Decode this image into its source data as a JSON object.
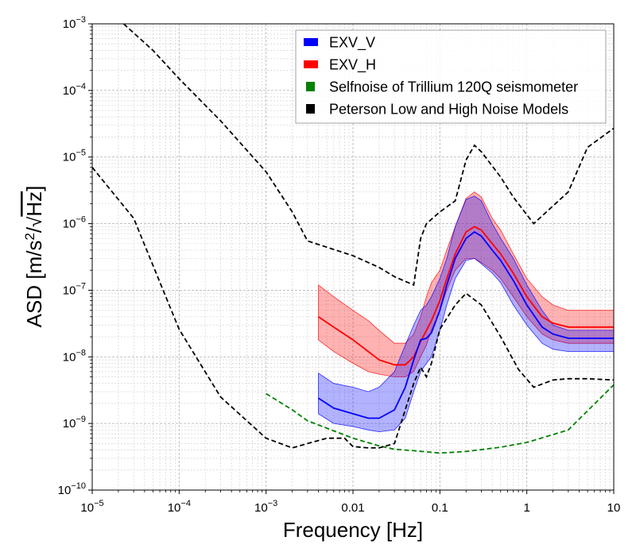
{
  "chart_data": {
    "type": "line",
    "xlabel": "Frequency [Hz]",
    "ylabel": "ASD [m/s²/√Hz]",
    "ylabel_parts": {
      "prefix": "ASD [m/s",
      "exp": "2",
      "slash": "/",
      "radicand": "Hz",
      "suffix": "]"
    },
    "xscale": "log",
    "yscale": "log",
    "xlim": [
      1e-05,
      10
    ],
    "ylim": [
      1e-10,
      0.001
    ],
    "grid": true,
    "legend_position": "top-right",
    "x_ticks": [
      {
        "value": 1e-05,
        "base": "10",
        "exp": "−5"
      },
      {
        "value": 0.0001,
        "base": "10",
        "exp": "−4"
      },
      {
        "value": 0.001,
        "base": "10",
        "exp": "−3"
      },
      {
        "value": 0.01,
        "label": "0.01"
      },
      {
        "value": 0.1,
        "label": "0.1"
      },
      {
        "value": 1,
        "label": "1"
      },
      {
        "value": 10,
        "label": "10"
      }
    ],
    "y_ticks": [
      {
        "value": 1e-10,
        "base": "10",
        "exp": "−10"
      },
      {
        "value": 1e-09,
        "base": "10",
        "exp": "−9"
      },
      {
        "value": 1e-08,
        "base": "10",
        "exp": "−8"
      },
      {
        "value": 1e-07,
        "base": "10",
        "exp": "−7"
      },
      {
        "value": 1e-06,
        "base": "10",
        "exp": "−6"
      },
      {
        "value": 1e-05,
        "base": "10",
        "exp": "−5"
      },
      {
        "value": 0.0001,
        "base": "10",
        "exp": "−4"
      },
      {
        "value": 0.001,
        "base": "10",
        "exp": "−3"
      }
    ],
    "legend": [
      {
        "label": "EXV_V",
        "color": "#0000ff"
      },
      {
        "label": "EXV_H",
        "color": "#ff0000"
      },
      {
        "label": "Selfnoise of Trillium 120Q seismometer",
        "color": "#008000"
      },
      {
        "label": "Peterson Low and High Noise Models",
        "color": "#000000"
      }
    ],
    "bands": [
      {
        "series": "EXV_H",
        "fill": "#ff0000",
        "fill_opacity": 0.3,
        "edge_color": "#ff0000",
        "x": [
          0.004,
          0.006,
          0.01,
          0.015,
          0.02,
          0.03,
          0.04,
          0.05,
          0.06,
          0.07,
          0.08,
          0.1,
          0.12,
          0.15,
          0.2,
          0.25,
          0.3,
          0.4,
          0.5,
          0.7,
          1,
          1.5,
          2,
          3,
          5,
          7,
          10
        ],
        "upper": [
          1.2e-07,
          8e-08,
          5e-08,
          3.5e-08,
          2.5e-08,
          1.6e-08,
          1.6e-08,
          2.2e-08,
          4e-08,
          8e-08,
          1.3e-07,
          2e-07,
          4e-07,
          9e-07,
          2.4e-06,
          3e-06,
          2.5e-06,
          1.2e-06,
          8e-07,
          3.5e-07,
          1.5e-07,
          8e-08,
          6e-08,
          5e-08,
          5e-08,
          5e-08,
          5e-08
        ],
        "lower": [
          1.8e-08,
          1.2e-08,
          8e-09,
          6e-09,
          5.5e-09,
          5e-09,
          5e-09,
          6e-09,
          1e-08,
          1.5e-08,
          2.5e-08,
          5e-08,
          1e-07,
          2e-07,
          3e-07,
          3e-07,
          2.6e-07,
          2e-07,
          1.5e-07,
          8e-08,
          4e-08,
          2.2e-08,
          1.8e-08,
          1.6e-08,
          1.6e-08,
          1.6e-08,
          1.6e-08
        ]
      },
      {
        "series": "EXV_V",
        "fill": "#0000ff",
        "fill_opacity": 0.3,
        "edge_color": "#0000ff",
        "x": [
          0.004,
          0.006,
          0.01,
          0.015,
          0.02,
          0.03,
          0.04,
          0.05,
          0.06,
          0.07,
          0.08,
          0.1,
          0.12,
          0.15,
          0.2,
          0.25,
          0.3,
          0.4,
          0.5,
          0.7,
          1,
          1.5,
          2,
          3,
          5,
          7,
          10
        ],
        "upper": [
          5.7e-09,
          4e-09,
          3.5e-09,
          3e-09,
          3.5e-09,
          6e-09,
          1.5e-08,
          3e-08,
          5e-08,
          6e-08,
          8e-08,
          1.5e-07,
          3e-07,
          9e-07,
          2.3e-06,
          2.6e-06,
          2.2e-06,
          1e-06,
          6e-07,
          3e-07,
          1.2e-07,
          5e-08,
          3e-08,
          2.5e-08,
          2.5e-08,
          2.5e-08,
          2.5e-08
        ],
        "lower": [
          1.4e-09,
          1e-09,
          9e-10,
          8e-10,
          7.5e-10,
          8e-10,
          1.2e-09,
          3e-09,
          6e-09,
          8e-09,
          1e-08,
          2.5e-08,
          6e-08,
          1.5e-07,
          2.8e-07,
          3e-07,
          2.5e-07,
          1.8e-07,
          1.3e-07,
          6e-08,
          3e-08,
          1.6e-08,
          1.3e-08,
          1.2e-08,
          1.2e-08,
          1.2e-08,
          1.2e-08
        ]
      }
    ],
    "series": [
      {
        "name": "EXV_H",
        "color": "#ff0000",
        "dash": "solid",
        "x": [
          0.004,
          0.006,
          0.01,
          0.015,
          0.02,
          0.03,
          0.04,
          0.05,
          0.06,
          0.07,
          0.08,
          0.1,
          0.12,
          0.15,
          0.2,
          0.25,
          0.3,
          0.4,
          0.5,
          0.7,
          1,
          1.5,
          2,
          3,
          5,
          7,
          10
        ],
        "y": [
          4e-08,
          2.8e-08,
          1.8e-08,
          1.2e-08,
          9e-09,
          7.6e-09,
          7.6e-09,
          1e-08,
          1.7e-08,
          2.5e-08,
          3.5e-08,
          7e-08,
          1.5e-07,
          3.5e-07,
          7.5e-07,
          9e-07,
          8e-07,
          5e-07,
          3.5e-07,
          1.8e-07,
          8e-08,
          4e-08,
          3.2e-08,
          2.8e-08,
          2.8e-08,
          2.8e-08,
          2.8e-08
        ]
      },
      {
        "name": "EXV_V",
        "color": "#0000ff",
        "dash": "solid",
        "x": [
          0.004,
          0.006,
          0.01,
          0.015,
          0.02,
          0.03,
          0.04,
          0.05,
          0.06,
          0.07,
          0.08,
          0.1,
          0.12,
          0.15,
          0.2,
          0.25,
          0.3,
          0.4,
          0.5,
          0.7,
          1,
          1.5,
          2,
          3,
          5,
          7,
          10
        ],
        "y": [
          2.4e-09,
          1.7e-09,
          1.4e-09,
          1.2e-09,
          1.2e-09,
          1.6e-09,
          3.5e-09,
          9e-09,
          1.8e-08,
          1.9e-08,
          2.3e-08,
          5e-08,
          1.2e-07,
          3e-07,
          6e-07,
          7.5e-07,
          6.5e-07,
          4e-07,
          2.8e-07,
          1.4e-07,
          6e-08,
          2.8e-08,
          2.2e-08,
          1.9e-08,
          1.9e-08,
          1.9e-08,
          1.9e-08
        ]
      },
      {
        "name": "Selfnoise of Trillium 120Q seismometer",
        "color": "#008000",
        "dash": "dashed",
        "x": [
          0.001,
          0.002,
          0.003,
          0.005,
          0.01,
          0.02,
          0.03,
          0.05,
          0.1,
          0.2,
          0.5,
          1,
          3,
          10
        ],
        "y": [
          2.8e-09,
          1.6e-09,
          1.1e-09,
          8.5e-10,
          6e-10,
          4.6e-10,
          4.1e-10,
          3.9e-10,
          3.6e-10,
          3.8e-10,
          4.4e-10,
          5.2e-10,
          8e-10,
          3.8e-09
        ]
      },
      {
        "name": "Peterson High Noise Model",
        "color": "#000000",
        "dash": "dashed",
        "x": [
          2.3e-05,
          5e-05,
          0.0001,
          0.0003,
          0.001,
          0.002,
          0.003,
          0.01,
          0.02,
          0.03,
          0.05,
          0.06,
          0.07,
          0.1,
          0.15,
          0.2,
          0.25,
          0.3,
          0.5,
          0.7,
          1.2,
          3,
          5,
          10
        ],
        "y": [
          0.001,
          0.0004,
          0.00015,
          3.5e-05,
          6e-06,
          1.5e-06,
          5.5e-07,
          3.3e-07,
          2.2e-07,
          1.6e-07,
          1.2e-07,
          6e-07,
          1e-06,
          1.5e-06,
          2.2e-06,
          9e-06,
          1.5e-05,
          1.2e-05,
          5e-06,
          2.5e-06,
          1e-06,
          3e-06,
          1.4e-05,
          2.7e-05
        ]
      },
      {
        "name": "Peterson Low Noise Model",
        "color": "#000000",
        "dash": "dashed",
        "x": [
          1e-05,
          3e-05,
          0.0001,
          0.0003,
          0.001,
          0.002,
          0.003,
          0.005,
          0.008,
          0.01,
          0.015,
          0.02,
          0.03,
          0.05,
          0.06,
          0.07,
          0.08,
          0.1,
          0.15,
          0.2,
          0.3,
          0.5,
          0.8,
          1.2,
          2,
          3,
          5,
          10
        ],
        "y": [
          7e-06,
          1.2e-06,
          2.6e-08,
          2.5e-09,
          6e-10,
          4.3e-10,
          5e-10,
          6e-10,
          6e-10,
          4.5e-10,
          4.3e-10,
          4.3e-10,
          5e-10,
          4e-09,
          7e-09,
          5e-09,
          8e-09,
          2.6e-08,
          6e-08,
          9e-08,
          6e-08,
          2e-08,
          6.5e-09,
          3.5e-09,
          4.5e-09,
          4.7e-09,
          4.7e-09,
          4.5e-09
        ]
      }
    ]
  }
}
